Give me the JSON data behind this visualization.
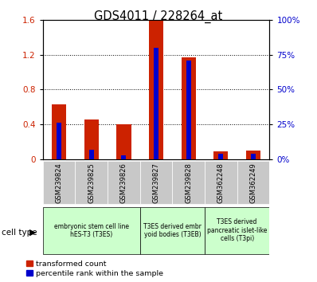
{
  "title": "GDS4011 / 228264_at",
  "samples": [
    "GSM239824",
    "GSM239825",
    "GSM239826",
    "GSM239827",
    "GSM239828",
    "GSM362248",
    "GSM362249"
  ],
  "transformed_count": [
    0.63,
    0.46,
    0.4,
    1.585,
    1.17,
    0.095,
    0.1
  ],
  "percentile_rank_pct": [
    26,
    7,
    3,
    80,
    71,
    4,
    4
  ],
  "red_color": "#cc2200",
  "blue_color": "#0000cc",
  "ylim_left": [
    0,
    1.6
  ],
  "ylim_right": [
    0,
    100
  ],
  "yticks_left": [
    0,
    0.4,
    0.8,
    1.2,
    1.6
  ],
  "ytick_labels_left": [
    "0",
    "0.4",
    "0.8",
    "1.2",
    "1.6"
  ],
  "yticks_right": [
    0,
    25,
    50,
    75,
    100
  ],
  "ytick_labels_right": [
    "0%",
    "25%",
    "50%",
    "75%",
    "100%"
  ],
  "tick_label_color_left": "#cc2200",
  "tick_label_color_right": "#0000cc",
  "background_xtick": "#c8c8c8",
  "cell_groups": [
    {
      "start": 0,
      "end": 2,
      "label": "embryonic stem cell line\nhES-T3 (T3ES)"
    },
    {
      "start": 3,
      "end": 4,
      "label": "T3ES derived embr\nyoid bodies (T3EB)"
    },
    {
      "start": 5,
      "end": 6,
      "label": "T3ES derived\npancreatic islet-like\ncells (T3pi)"
    }
  ],
  "cell_group_color": "#ccffcc"
}
